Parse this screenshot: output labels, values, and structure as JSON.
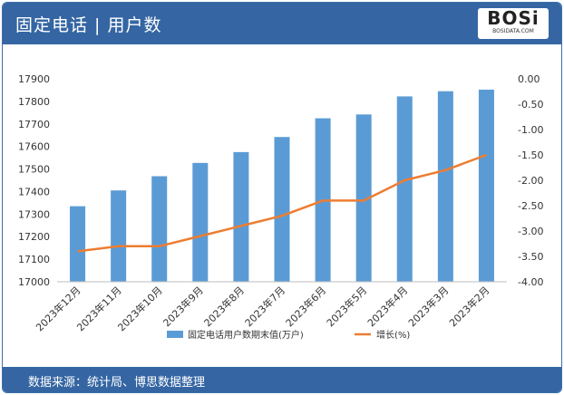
{
  "header": {
    "title": "固定电话 | 用户数"
  },
  "logo": {
    "text_main": "BOSi",
    "text_sub": "BOSIDATA.COM"
  },
  "footer": {
    "source": "数据来源：统计局、博思数据整理"
  },
  "colors": {
    "bar": "#5b9bd5",
    "line": "#ed7d31",
    "header": "#3566a3"
  },
  "chart_data": {
    "type": "bar",
    "categories": [
      "2023年12月",
      "2023年11月",
      "2023年10月",
      "2023年9月",
      "2023年8月",
      "2023年7月",
      "2023年6月",
      "2023年5月",
      "2023年4月",
      "2023年3月",
      "2023年2月"
    ],
    "series": [
      {
        "name": "固定电话用户数期末值(万户)",
        "type": "bar",
        "axis": "left",
        "values": [
          17335,
          17405,
          17468,
          17527,
          17575,
          17642,
          17725,
          17742,
          17822,
          17845,
          17852
        ]
      },
      {
        "name": "增长(%)",
        "type": "line",
        "axis": "right",
        "values": [
          -3.4,
          -3.3,
          -3.3,
          -3.1,
          -2.9,
          -2.7,
          -2.4,
          -2.4,
          -2.0,
          -1.8,
          -1.5
        ]
      }
    ],
    "y_left": {
      "min": 17000,
      "max": 17900,
      "step": 100,
      "ticks": [
        "17000",
        "17100",
        "17200",
        "17300",
        "17400",
        "17500",
        "17600",
        "17700",
        "17800",
        "17900"
      ]
    },
    "y_right": {
      "min": -4.0,
      "max": 0.0,
      "step": 0.5,
      "ticks": [
        "-4.00",
        "-3.50",
        "-3.00",
        "-2.50",
        "-2.00",
        "-1.50",
        "-1.00",
        "-0.50",
        "0.00"
      ]
    },
    "legend_position": "bottom"
  }
}
